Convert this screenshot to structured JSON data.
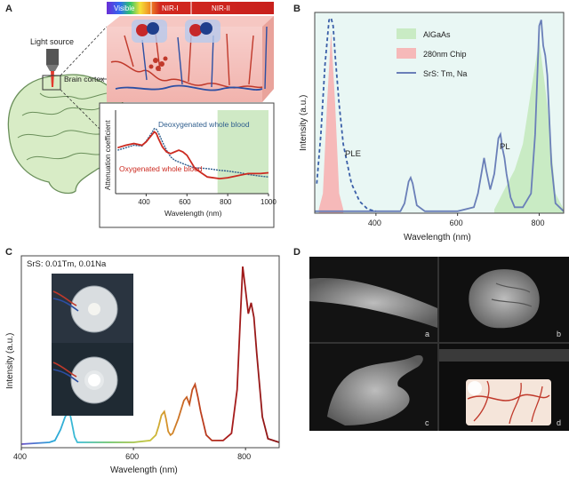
{
  "panels": {
    "a": {
      "letter": "A",
      "light_source": "Light source",
      "brain_cortex": "Brain cortex",
      "bands": [
        "Visible",
        "NIR-I",
        "NIR-II"
      ],
      "chart_data": {
        "type": "line",
        "xlabel": "Wavelength (nm)",
        "ylabel": "Attenuation coefficient",
        "xlim": [
          250,
          1000
        ],
        "xticks": [
          400,
          600,
          800,
          1000
        ],
        "series": [
          {
            "name": "Deoxygenated whole blood",
            "color": "#2f5e8e",
            "x": [
              260,
              300,
              340,
              380,
              400,
              420,
              440,
              450,
              460,
              480,
              500,
              520,
              540,
              560,
              580,
              600,
              640,
              700,
              760,
              800,
              860,
              900,
              960,
              1000
            ],
            "y": [
              0.52,
              0.55,
              0.58,
              0.57,
              0.63,
              0.7,
              0.78,
              0.77,
              0.73,
              0.62,
              0.52,
              0.44,
              0.4,
              0.38,
              0.36,
              0.34,
              0.31,
              0.3,
              0.28,
              0.27,
              0.25,
              0.23,
              0.21,
              0.2
            ]
          },
          {
            "name": "Oxygenated whole blood",
            "color": "#cc2a20",
            "x": [
              260,
              300,
              340,
              380,
              400,
              420,
              440,
              450,
              460,
              480,
              500,
              520,
              540,
              560,
              580,
              600,
              640,
              700,
              760,
              800,
              860,
              900,
              960,
              1000
            ],
            "y": [
              0.55,
              0.58,
              0.6,
              0.58,
              0.62,
              0.68,
              0.74,
              0.72,
              0.66,
              0.56,
              0.5,
              0.48,
              0.5,
              0.52,
              0.5,
              0.46,
              0.3,
              0.2,
              0.18,
              0.19,
              0.22,
              0.24,
              0.24,
              0.25
            ]
          }
        ]
      }
    },
    "b": {
      "letter": "B",
      "chart_data": {
        "type": "line",
        "xlabel": "Wavelength (nm)",
        "ylabel": "Intensity (a.u.)",
        "xlim": [
          250,
          860
        ],
        "xticks": [
          400,
          600,
          800
        ],
        "annotations": [
          "PLE",
          "PL"
        ],
        "legend": [
          "AlGaAs",
          "280nm Chip",
          "SrS: Tm, Na"
        ],
        "series": [
          {
            "name": "AlGaAs",
            "type": "area",
            "color": "#c9ebc4",
            "x": [
              690,
              700,
              710,
              720,
              740,
              760,
              780,
              800,
              820,
              840,
              860
            ],
            "y": [
              0.02,
              0.06,
              0.1,
              0.14,
              0.22,
              0.35,
              0.62,
              0.88,
              0.55,
              0.1,
              0.02
            ]
          },
          {
            "name": "280nm Chip",
            "type": "area",
            "color": "#f6b9b9",
            "x": [
              260,
              270,
              280,
              290,
              300,
              310,
              320
            ],
            "y": [
              0.02,
              0.1,
              0.55,
              0.92,
              0.55,
              0.1,
              0.02
            ]
          },
          {
            "name": "SrS: Tm, Na",
            "type": "line",
            "color": "#6a7fb8",
            "x": [
              250,
              460,
              470,
              480,
              485,
              490,
              500,
              520,
              600,
              640,
              650,
              660,
              665,
              670,
              680,
              690,
              700,
              705,
              710,
              715,
              720,
              730,
              740,
              760,
              780,
              790,
              800,
              805,
              810,
              815,
              820,
              830,
              840,
              860
            ],
            "y": [
              0.01,
              0.01,
              0.05,
              0.16,
              0.18,
              0.15,
              0.04,
              0.01,
              0.01,
              0.03,
              0.1,
              0.22,
              0.28,
              0.22,
              0.12,
              0.2,
              0.38,
              0.4,
              0.33,
              0.28,
              0.2,
              0.08,
              0.03,
              0.03,
              0.1,
              0.4,
              0.95,
              0.98,
              0.85,
              0.8,
              0.7,
              0.25,
              0.05,
              0.01
            ]
          },
          {
            "name": "PLE",
            "type": "dashed",
            "color": "#3b5fa8",
            "x": [
              255,
              265,
              275,
              285,
              290,
              295,
              300,
              310,
              320,
              340,
              360,
              380,
              400
            ],
            "y": [
              0.15,
              0.4,
              0.75,
              0.98,
              0.99,
              0.95,
              0.8,
              0.55,
              0.35,
              0.15,
              0.06,
              0.02,
              0.01
            ]
          }
        ]
      }
    },
    "c": {
      "letter": "C",
      "label": "SrS: 0.01Tm, 0.01Na",
      "chart_data": {
        "type": "line",
        "xlabel": "Wavelength (nm)",
        "ylabel": "Intensity (a.u.)",
        "xlim": [
          400,
          860
        ],
        "xticks": [
          400,
          600,
          800
        ],
        "series": [
          {
            "name": "",
            "color": "gradient",
            "x": [
              400,
              450,
              460,
              470,
              478,
              482,
              486,
              490,
              495,
              500,
              520,
              560,
              600,
              630,
              640,
              645,
              650,
              655,
              658,
              662,
              666,
              670,
              675,
              680,
              690,
              695,
              700,
              705,
              710,
              715,
              720,
              730,
              740,
              760,
              775,
              785,
              790,
              795,
              800,
              805,
              810,
              815,
              820,
              830,
              840,
              860
            ],
            "y": [
              0.0,
              0.01,
              0.02,
              0.08,
              0.15,
              0.17,
              0.18,
              0.12,
              0.04,
              0.01,
              0.01,
              0.01,
              0.01,
              0.02,
              0.05,
              0.1,
              0.16,
              0.18,
              0.14,
              0.07,
              0.05,
              0.06,
              0.1,
              0.14,
              0.24,
              0.26,
              0.22,
              0.3,
              0.33,
              0.26,
              0.18,
              0.05,
              0.02,
              0.02,
              0.06,
              0.3,
              0.65,
              0.98,
              0.85,
              0.72,
              0.78,
              0.7,
              0.5,
              0.15,
              0.03,
              0.01
            ]
          }
        ]
      }
    },
    "d": {
      "letter": "D",
      "sublabels": [
        "a",
        "b",
        "c",
        "d"
      ]
    }
  }
}
